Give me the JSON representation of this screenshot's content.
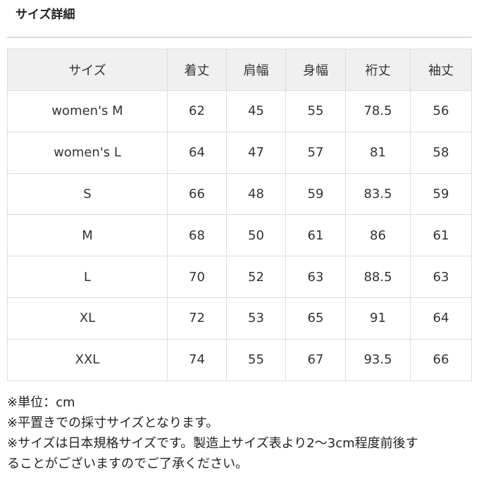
{
  "title": "サイズ詳細",
  "table": {
    "headers": [
      "サイズ",
      "着丈",
      "肩幅",
      "身幅",
      "裄丈",
      "袖丈"
    ],
    "rows": [
      [
        "women's M",
        "62",
        "45",
        "55",
        "78.5",
        "56"
      ],
      [
        "women's L",
        "64",
        "47",
        "57",
        "81",
        "58"
      ],
      [
        "S",
        "66",
        "48",
        "59",
        "83.5",
        "59"
      ],
      [
        "M",
        "68",
        "50",
        "61",
        "86",
        "61"
      ],
      [
        "L",
        "70",
        "52",
        "63",
        "88.5",
        "63"
      ],
      [
        "XL",
        "72",
        "53",
        "65",
        "91",
        "64"
      ],
      [
        "XXL",
        "74",
        "55",
        "67",
        "93.5",
        "66"
      ]
    ]
  },
  "notes": [
    "※単位：cm",
    "※平置きでの採寸サイズとなります。",
    "※サイズは日本規格サイズです。製造上サイズ表より2〜3cm程度前後す",
    "ることがございますのでご了承ください。"
  ]
}
